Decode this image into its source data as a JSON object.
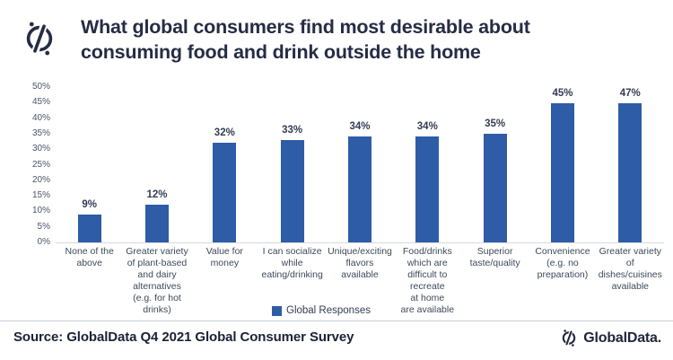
{
  "header": {
    "title": "What global consumers find most desirable about\nconsuming food and drink outside the home"
  },
  "footer": {
    "source": "Source: GlobalData Q4 2021 Global Consumer Survey",
    "brand": "GlobalData."
  },
  "colors": {
    "bar_blue": "#2e5ca6",
    "navy": "#262c44",
    "axis_text": "#4a5468",
    "axis_line": "#d6d9de"
  },
  "chart_data": {
    "type": "bar",
    "title": "What global consumers find most desirable about consuming food and drink outside the home",
    "categories": [
      "None of the\nabove",
      "Greater variety\nof plant-based\nand dairy alternatives\n(e.g. for hot drinks)",
      "Value for\nmoney",
      "I can socialize\nwhile\neating/drinking",
      "Unique/exciting\nflavors\navailable",
      "Food/drinks\nwhich are\ndifficult to recreate\nat home\nare available",
      "Superior\ntaste/quality",
      "Convenience\n(e.g. no\npreparation)",
      "Greater variety\nof\ndishes/cuisines\navailable"
    ],
    "series": [
      {
        "name": "Global Responses",
        "values": [
          9,
          12,
          32,
          33,
          34,
          34,
          35,
          45,
          47
        ]
      }
    ],
    "value_labels": [
      "9%",
      "12%",
      "32%",
      "33%",
      "34%",
      "34%",
      "35%",
      "45%",
      "47%"
    ],
    "ylim": [
      0,
      50
    ],
    "ytick_step": 5,
    "yticks": [
      "0%",
      "5%",
      "10%",
      "15%",
      "20%",
      "25%",
      "30%",
      "35%",
      "40%",
      "45%",
      "50%"
    ],
    "grid": false,
    "legend_position": "bottom",
    "bar_color": "#2e5ca6"
  }
}
